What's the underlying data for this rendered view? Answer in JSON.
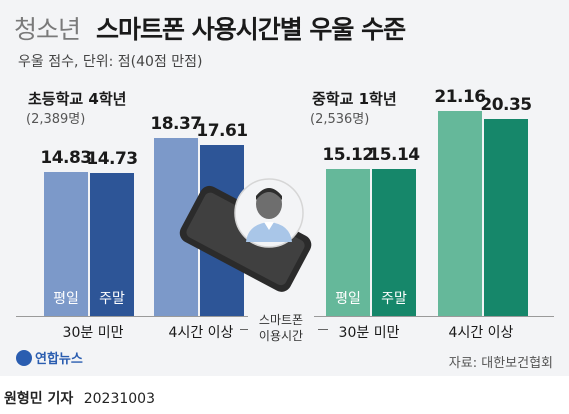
{
  "title": {
    "light": "청소년",
    "bold": "스마트폰 사용시간별 우울 수준"
  },
  "subtitle": "우울 점수, 단위: 점(40점 만점)",
  "legend_axis_label": [
    "스마트폰",
    "이용시간"
  ],
  "source": "자료: 대한보건협회",
  "logo_text": "연합뉴스",
  "credit": {
    "name": "원형민 기자",
    "date": "20231003"
  },
  "colors": {
    "elem_weekday": "#7c99c9",
    "elem_weekend": "#2d5597",
    "mid_weekday": "#65b89a",
    "mid_weekend": "#16876a"
  },
  "chart_data": [
    {
      "type": "bar",
      "title": "초등학교 4학년",
      "subtitle": "(2,389명)",
      "categories": [
        "30분 미만",
        "4시간 이상"
      ],
      "series": [
        {
          "name": "평일",
          "values": [
            14.83,
            18.37
          ],
          "labels": [
            "14.83",
            "18.37"
          ]
        },
        {
          "name": "주말",
          "values": [
            14.73,
            17.61
          ],
          "labels": [
            "14.73",
            "17.61"
          ]
        }
      ],
      "ylim": [
        0,
        24
      ]
    },
    {
      "type": "bar",
      "title": "중학교 1학년",
      "subtitle": "(2,536명)",
      "categories": [
        "30분 미만",
        "4시간 이상"
      ],
      "series": [
        {
          "name": "평일",
          "values": [
            15.12,
            21.16
          ],
          "labels": [
            "15.12",
            "21.16"
          ]
        },
        {
          "name": "주말",
          "values": [
            15.14,
            20.35
          ],
          "labels": [
            "15.14",
            "20.35"
          ]
        }
      ],
      "ylim": [
        0,
        24
      ]
    }
  ]
}
